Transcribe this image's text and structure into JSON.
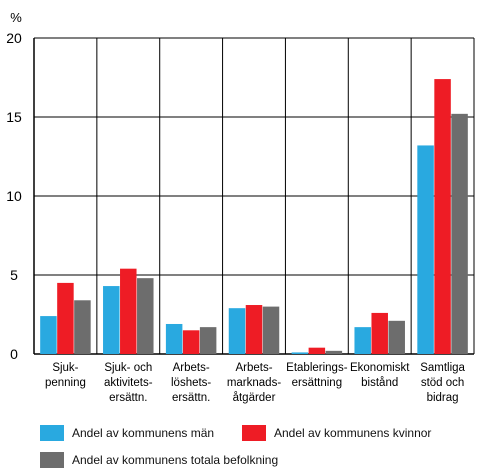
{
  "chart_data": {
    "type": "bar",
    "title": "",
    "ylabel": "%",
    "ylim": [
      0,
      20
    ],
    "yticks": [
      0,
      5,
      10,
      15,
      20
    ],
    "grid": true,
    "legend_position": "bottom",
    "categories": [
      [
        "Sjuk-",
        "penning"
      ],
      [
        "Sjuk- och",
        "aktivitets-",
        "ersättn."
      ],
      [
        "Arbets-",
        "löshets-",
        "ersättn."
      ],
      [
        "Arbets-",
        "marknads-",
        "åtgärder"
      ],
      [
        "Etablerings-",
        "ersättning"
      ],
      [
        "Ekonomiskt",
        "bistånd"
      ],
      [
        "Samtliga",
        "stöd och",
        "bidrag"
      ]
    ],
    "series": [
      {
        "name": "Andel av kommunens män",
        "color": "#29a9e0",
        "values": [
          2.4,
          4.3,
          1.9,
          2.9,
          0.1,
          1.7,
          13.2
        ]
      },
      {
        "name": "Andel av kommunens kvinnor",
        "color": "#ee1c25",
        "values": [
          4.5,
          5.4,
          1.5,
          3.1,
          0.4,
          2.6,
          17.4
        ]
      },
      {
        "name": "Andel av kommunens totala befolkning",
        "color": "#6d6d6d",
        "values": [
          3.4,
          4.8,
          1.7,
          3.0,
          0.2,
          2.1,
          15.2
        ]
      }
    ]
  }
}
